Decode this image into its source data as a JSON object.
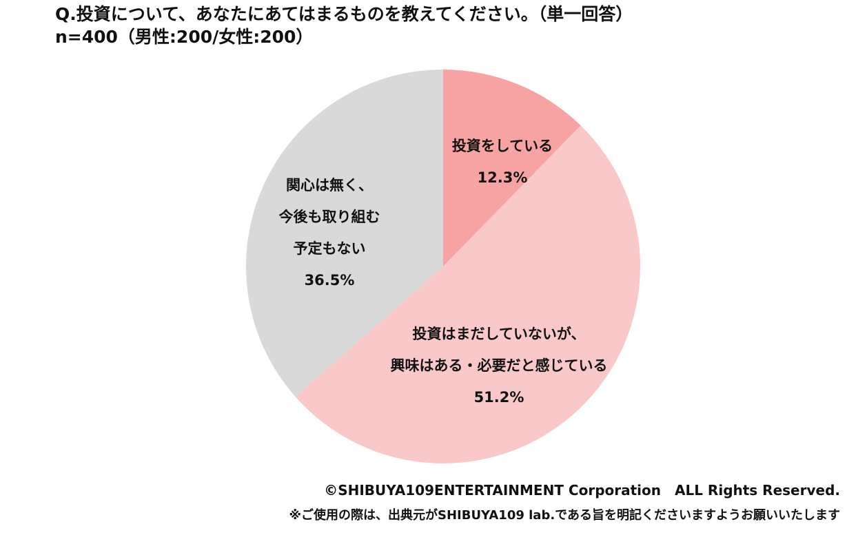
{
  "question": "Q.投資について、あなたにあてはまるものを教えてください。（単一回答）",
  "sample": "n=400（男性:200/女性:200）",
  "chart_data": {
    "type": "pie",
    "colors": [
      "#f7a3a3",
      "#f9c8c9",
      "#d9d9d9"
    ],
    "slices": [
      {
        "label_lines": [
          "投資をしている"
        ],
        "pct_label": "12.3%",
        "value": 12.3
      },
      {
        "label_lines": [
          "投資はまだしていないが、",
          "興味はある・必要だと感じている"
        ],
        "pct_label": "51.2%",
        "value": 51.2
      },
      {
        "label_lines": [
          "関心は無く、",
          "今後も取り組む",
          "予定もない"
        ],
        "pct_label": "36.5%",
        "value": 36.5
      }
    ]
  },
  "footer": {
    "copyright": "©SHIBUYA109ENTERTAINMENT Corporation　ALL Rights Reserved.",
    "note": "※ご使用の際は、出典元がSHIBUYA109 lab.である旨を明記くださいますようお願いいたします"
  }
}
